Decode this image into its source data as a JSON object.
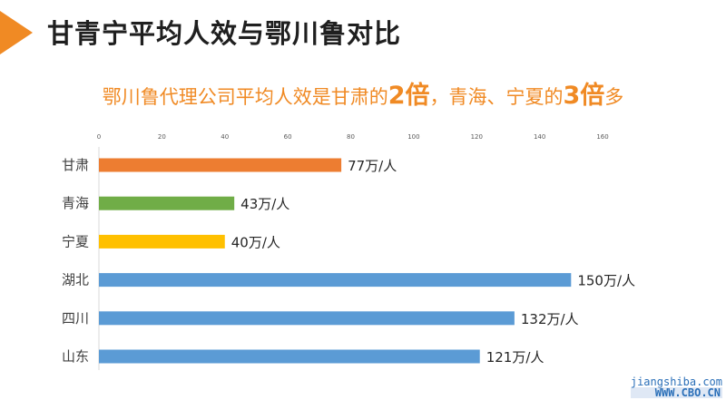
{
  "header": {
    "title": "甘青宁平均人效与鄂川鲁对比",
    "accent_color": "#f08a24"
  },
  "subtitle": {
    "part1": "鄂川鲁代理公司平均人效是甘肃的",
    "num1": "2倍",
    "part2": "，青海、宁夏的",
    "num2": "3倍",
    "part3": "多"
  },
  "watermark": {
    "line1": "jiangshiba.com",
    "line2": "WWW.CBO.CN"
  },
  "chart_data": {
    "type": "bar",
    "orientation": "horizontal",
    "categories": [
      "甘肃",
      "青海",
      "宁夏",
      "湖北",
      "四川",
      "山东"
    ],
    "values": [
      77,
      43,
      40,
      150,
      132,
      121
    ],
    "data_labels": [
      "77万/人",
      "43万/人",
      "40万/人",
      "150万/人",
      "132万/人",
      "121万/人"
    ],
    "colors": [
      "#ed7d31",
      "#70ad47",
      "#ffc000",
      "#5b9bd5",
      "#5b9bd5",
      "#5b9bd5"
    ],
    "xlim": [
      0,
      160
    ],
    "xticks": [
      0,
      20,
      40,
      60,
      80,
      100,
      120,
      140,
      160
    ],
    "xaxis_position": "top",
    "grid": false
  }
}
